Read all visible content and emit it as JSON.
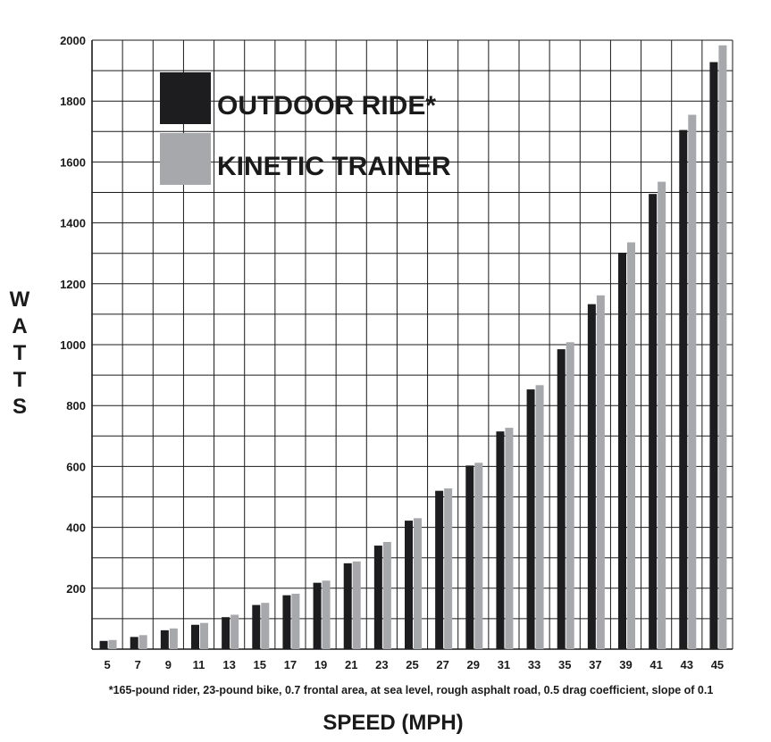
{
  "chart_data": {
    "type": "bar",
    "title": "",
    "xlabel": "SPEED (MPH)",
    "ylabel": "WATTS",
    "ylim": [
      0,
      2000
    ],
    "yticks": [
      200,
      400,
      600,
      800,
      1000,
      1200,
      1400,
      1600,
      1800,
      2000
    ],
    "grid": true,
    "legend_position": "top-left",
    "footnote": "*165-pound rider, 23-pound bike, 0.7 frontal area, at sea level, rough asphalt road, 0.5 drag coefficient, slope of 0.1",
    "categories": [
      "5",
      "7",
      "9",
      "11",
      "13",
      "15",
      "17",
      "19",
      "21",
      "23",
      "25",
      "27",
      "29",
      "31",
      "33",
      "35",
      "37",
      "39",
      "41",
      "43",
      "45"
    ],
    "series": [
      {
        "name": "OUTDOOR RIDE*",
        "color": "#1d1d1f",
        "values": [
          27,
          40,
          62,
          80,
          105,
          145,
          177,
          218,
          282,
          340,
          422,
          520,
          603,
          715,
          853,
          985,
          1133,
          1302,
          1495,
          1705,
          1928
        ]
      },
      {
        "name": "KINETIC TRAINER",
        "color": "#a7a8ab",
        "values": [
          30,
          46,
          68,
          86,
          113,
          152,
          182,
          225,
          288,
          352,
          430,
          528,
          612,
          727,
          867,
          1008,
          1162,
          1336,
          1535,
          1755,
          1983
        ]
      }
    ]
  }
}
